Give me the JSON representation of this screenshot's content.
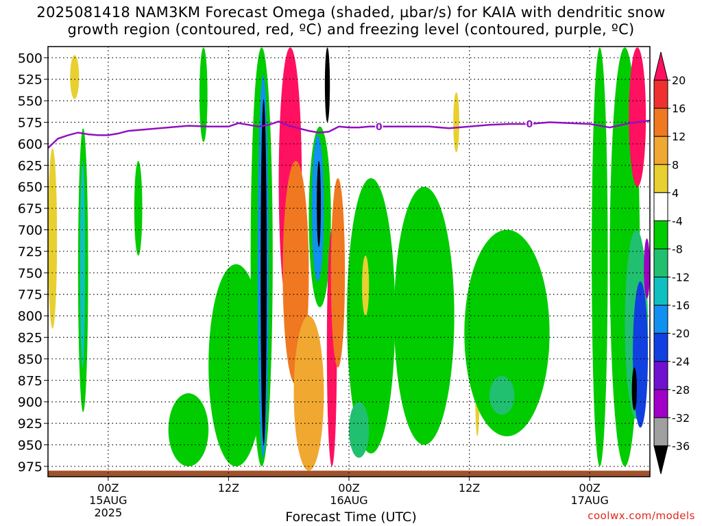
{
  "title_line1": "2025081418 NAM3KM Forecast Omega (shaded, µbar/s) for KAIA with dendritic snow",
  "title_line2": "growth region (contoured, red, ºC) and freezing level (contoured, purple, ºC)",
  "credit": "coolwx.com/models",
  "chart_data": {
    "type": "heatmap",
    "xlabel": "Forecast Time (UTC)",
    "ylabel": "",
    "x_ticks": [
      {
        "hour": 10,
        "lines": [
          "00Z",
          "15AUG",
          "2025"
        ]
      },
      {
        "hour": 22,
        "lines": [
          "12Z"
        ]
      },
      {
        "hour": 34,
        "lines": [
          "00Z",
          "16AUG"
        ]
      },
      {
        "hour": 46,
        "lines": [
          "12Z"
        ]
      },
      {
        "hour": 58,
        "lines": [
          "00Z",
          "17AUG"
        ]
      }
    ],
    "x_range_hours": [
      4,
      64
    ],
    "y_levels_hpa": [
      500,
      525,
      550,
      575,
      600,
      625,
      650,
      675,
      700,
      725,
      750,
      775,
      800,
      825,
      850,
      875,
      900,
      925,
      950,
      975
    ],
    "y_range_hpa": [
      487,
      987
    ],
    "grid": true,
    "colorbar": {
      "labels": [
        "20",
        "16",
        "12",
        "8",
        "4",
        "-4",
        "-8",
        "-12",
        "-16",
        "-20",
        "-24",
        "-28",
        "-32",
        "-36"
      ],
      "colors": [
        "#ff1060",
        "#f03030",
        "#f07820",
        "#f0a830",
        "#e8d030",
        "#ffffff",
        "#00cc00",
        "#20c070",
        "#10c0c0",
        "#1090f0",
        "#1040e0",
        "#7010d0",
        "#a000c8",
        "#a0a0a0",
        "#000000"
      ]
    },
    "freezing_level": {
      "label": "0",
      "color": "#9010c0",
      "points": [
        [
          4,
          605
        ],
        [
          5,
          594
        ],
        [
          6,
          590
        ],
        [
          7,
          587
        ],
        [
          8,
          589
        ],
        [
          9,
          590
        ],
        [
          10,
          590
        ],
        [
          11,
          588
        ],
        [
          12,
          585
        ],
        [
          14,
          583
        ],
        [
          16,
          581
        ],
        [
          18,
          579
        ],
        [
          20,
          580
        ],
        [
          22,
          580
        ],
        [
          23,
          576
        ],
        [
          24,
          578
        ],
        [
          25,
          580
        ],
        [
          26,
          578
        ],
        [
          27,
          574
        ],
        [
          28,
          579
        ],
        [
          29,
          582
        ],
        [
          30,
          585
        ],
        [
          31,
          587
        ],
        [
          32,
          586
        ],
        [
          33,
          580
        ],
        [
          34,
          581
        ],
        [
          35,
          581
        ],
        [
          36,
          580
        ],
        [
          38,
          580
        ],
        [
          40,
          580
        ],
        [
          42,
          580
        ],
        [
          44,
          582
        ],
        [
          46,
          580
        ],
        [
          48,
          578
        ],
        [
          50,
          577
        ],
        [
          52,
          577
        ],
        [
          54,
          575
        ],
        [
          56,
          576
        ],
        [
          58,
          577
        ],
        [
          60,
          581
        ],
        [
          62,
          576
        ],
        [
          64,
          573
        ]
      ],
      "label_hours": [
        37,
        52
      ]
    },
    "terrain_color": "#a0522d",
    "shaded_features": [
      {
        "omega": 4,
        "x": [
          6.2,
          7.1
        ],
        "p": [
          497,
          548
        ]
      },
      {
        "omega": 4,
        "x": [
          4.0,
          4.9
        ],
        "p": [
          605,
          815
        ]
      },
      {
        "omega": -8,
        "x": [
          7.0,
          8.0
        ],
        "p": [
          582,
          912
        ]
      },
      {
        "omega": -16,
        "x": [
          7.2,
          7.7
        ],
        "p": [
          620,
          860
        ]
      },
      {
        "omega": -8,
        "x": [
          12.6,
          13.4
        ],
        "p": [
          620,
          730
        ]
      },
      {
        "omega": -8,
        "x": [
          19.1,
          19.9
        ],
        "p": [
          488,
          598
        ]
      },
      {
        "omega": -8,
        "x": [
          16.0,
          20.0
        ],
        "p": [
          890,
          975
        ]
      },
      {
        "omega": -8,
        "x": [
          20.0,
          25.5
        ],
        "p": [
          740,
          975
        ]
      },
      {
        "omega": -8,
        "x": [
          24.2,
          26.4
        ],
        "p": [
          488,
          975
        ]
      },
      {
        "omega": -20,
        "x": [
          24.9,
          26.0
        ],
        "p": [
          520,
          965
        ]
      },
      {
        "omega": -36,
        "x": [
          25.2,
          25.8
        ],
        "p": [
          548,
          950
        ]
      },
      {
        "omega": 20,
        "x": [
          27.0,
          29.3
        ],
        "p": [
          488,
          800
        ]
      },
      {
        "omega": 12,
        "x": [
          27.4,
          30.0
        ],
        "p": [
          620,
          880
        ]
      },
      {
        "omega": 8,
        "x": [
          28.5,
          31.5
        ],
        "p": [
          800,
          980
        ]
      },
      {
        "omega": -8,
        "x": [
          30.0,
          32.2
        ],
        "p": [
          580,
          790
        ]
      },
      {
        "omega": -20,
        "x": [
          30.3,
          31.5
        ],
        "p": [
          590,
          760
        ]
      },
      {
        "omega": -36,
        "x": [
          30.8,
          31.2
        ],
        "p": [
          620,
          720
        ]
      },
      {
        "omega": -36,
        "x": [
          31.6,
          32.1
        ],
        "p": [
          488,
          575
        ]
      },
      {
        "omega": 20,
        "x": [
          31.8,
          32.8
        ],
        "p": [
          700,
          975
        ]
      },
      {
        "omega": 12,
        "x": [
          32.2,
          33.6
        ],
        "p": [
          640,
          860
        ]
      },
      {
        "omega": -8,
        "x": [
          33.8,
          38.6
        ],
        "p": [
          640,
          960
        ]
      },
      {
        "omega": -12,
        "x": [
          34.0,
          36.0
        ],
        "p": [
          900,
          965
        ]
      },
      {
        "omega": 4,
        "x": [
          35.3,
          36.0
        ],
        "p": [
          730,
          800
        ]
      },
      {
        "omega": -8,
        "x": [
          38.5,
          44.5
        ],
        "p": [
          650,
          950
        ]
      },
      {
        "omega": 4,
        "x": [
          44.4,
          45.0
        ],
        "p": [
          540,
          610
        ]
      },
      {
        "omega": 4,
        "x": [
          46.6,
          47.0
        ],
        "p": [
          855,
          940
        ]
      },
      {
        "omega": -8,
        "x": [
          45.5,
          54.0
        ],
        "p": [
          700,
          940
        ]
      },
      {
        "omega": -12,
        "x": [
          48.0,
          50.5
        ],
        "p": [
          870,
          915
        ]
      },
      {
        "omega": -8,
        "x": [
          58.2,
          59.8
        ],
        "p": [
          488,
          975
        ]
      },
      {
        "omega": -8,
        "x": [
          60.0,
          63.0
        ],
        "p": [
          488,
          975
        ]
      },
      {
        "omega": 20,
        "x": [
          61.9,
          63.6
        ],
        "p": [
          488,
          650
        ]
      },
      {
        "omega": -12,
        "x": [
          61.5,
          63.8
        ],
        "p": [
          700,
          920
        ]
      },
      {
        "omega": -24,
        "x": [
          62.3,
          63.8
        ],
        "p": [
          760,
          930
        ]
      },
      {
        "omega": -36,
        "x": [
          62.2,
          62.7
        ],
        "p": [
          860,
          910
        ]
      },
      {
        "omega": -32,
        "x": [
          63.4,
          64.0
        ],
        "p": [
          710,
          780
        ]
      }
    ]
  }
}
